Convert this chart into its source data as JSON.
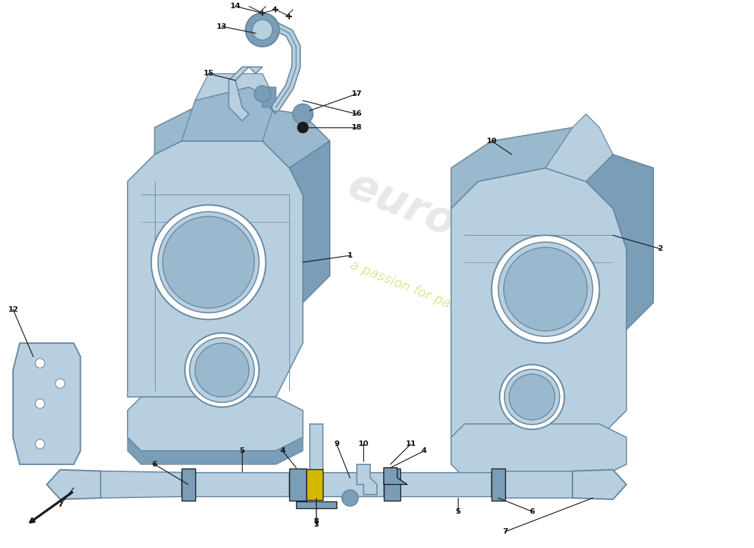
{
  "bg_color": "#ffffff",
  "part_color": "#b8cfe0",
  "part_color_mid": "#9ab8ce",
  "part_color_dark": "#7a9db8",
  "part_color_edge": "#6888a0",
  "line_color": "#1a1a1a",
  "label_color": "#111111",
  "wm1_color": "#cccccc",
  "wm1_alpha": 0.45,
  "wm2_color": "#cccc44",
  "wm2_alpha": 0.55
}
